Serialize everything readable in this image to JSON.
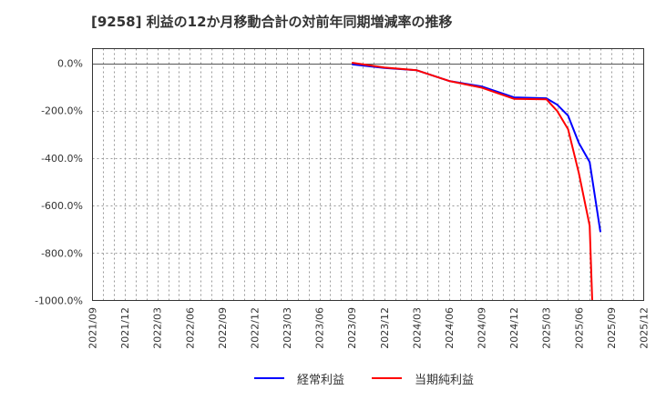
{
  "title": "[9258]  利益の12か月移動合計の対前年同期増減率の推移",
  "legend": {
    "items": [
      {
        "label": "経常利益",
        "color": "#0000ff"
      },
      {
        "label": "当期純利益",
        "color": "#ff0000"
      }
    ]
  },
  "chart_data": {
    "type": "line",
    "title": "[9258]  利益の12か月移動合計の対前年同期増減率の推移",
    "xlabel": "",
    "ylabel": "",
    "ylim": [
      -1000,
      60
    ],
    "yticks": [
      0,
      -200,
      -400,
      -600,
      -800,
      -1000
    ],
    "ytick_labels": [
      "0.0%",
      "-200.0%",
      "-400.0%",
      "-600.0%",
      "-800.0%",
      "-1000.0%"
    ],
    "xticks": [
      "2021/09",
      "2021/12",
      "2022/03",
      "2022/06",
      "2022/09",
      "2022/12",
      "2023/03",
      "2023/06",
      "2023/09",
      "2023/12",
      "2024/03",
      "2024/06",
      "2024/09",
      "2024/12",
      "2025/03",
      "2025/06",
      "2025/09",
      "2025/12"
    ],
    "grid": true,
    "legend_position": "bottom",
    "series": [
      {
        "name": "経常利益",
        "color": "#0000ff",
        "x": [
          "2023/09",
          "2023/12",
          "2024/03",
          "2024/06",
          "2024/09",
          "2024/12",
          "2025/03",
          "2025/04",
          "2025/05",
          "2025/06",
          "2025/07",
          "2025/08"
        ],
        "values": [
          -5,
          -20,
          -30,
          -75,
          -98,
          -144,
          -148,
          -175,
          -221,
          -336,
          -417,
          -712
        ]
      },
      {
        "name": "当期純利益",
        "color": "#ff0000",
        "x": [
          "2023/09",
          "2023/12",
          "2024/03",
          "2024/06",
          "2024/09",
          "2024/12",
          "2025/03",
          "2025/04",
          "2025/05",
          "2025/06",
          "2025/07",
          "2025/08"
        ],
        "values": [
          2,
          -18,
          -30,
          -75,
          -103,
          -150,
          -152,
          -202,
          -278,
          -463,
          -685,
          -1000
        ]
      }
    ]
  }
}
